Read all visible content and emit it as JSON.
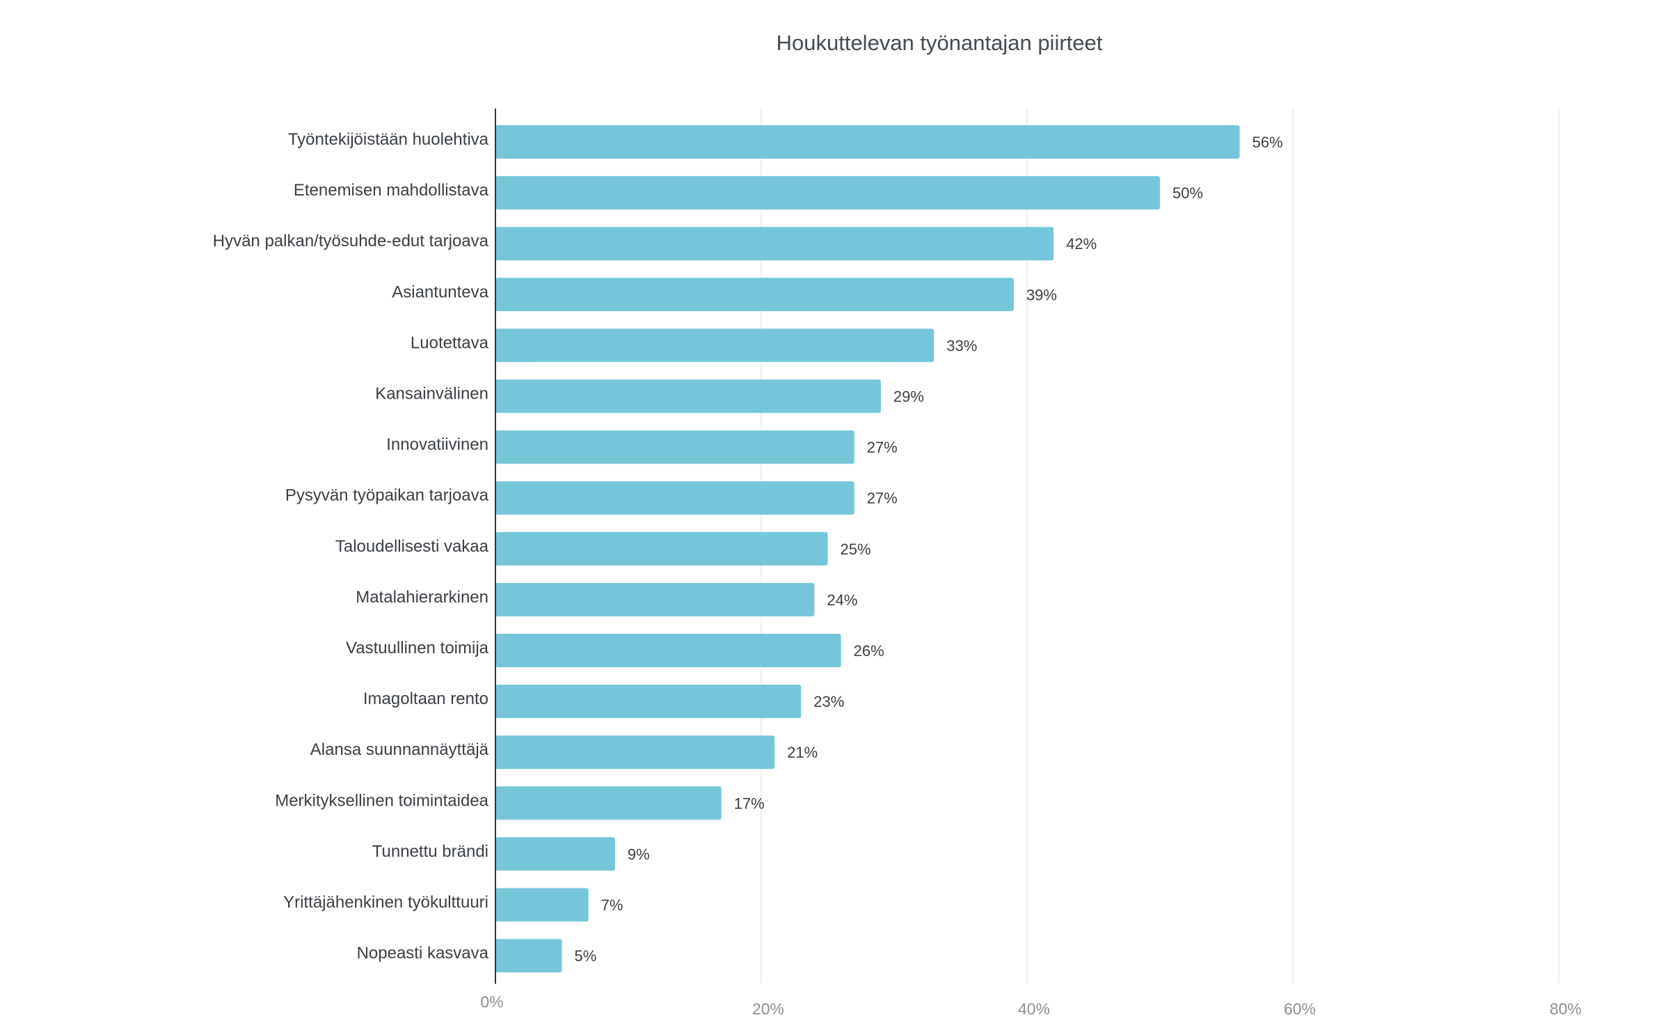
{
  "colors": {
    "bar": "#76c6da",
    "grid": "#eeeeee",
    "axis": "#333333"
  },
  "chart_data": {
    "type": "bar",
    "orientation": "horizontal",
    "title": "Houkuttelevan työnantajan piirteet",
    "xlabel": "",
    "ylabel": "",
    "xlim": [
      0,
      80
    ],
    "x_ticks": [
      0,
      20,
      40,
      60,
      80
    ],
    "x_tick_labels": [
      "0%",
      "20%",
      "40%",
      "60%",
      "80%"
    ],
    "grid": true,
    "legend": "none",
    "categories": [
      "Työntekijöistään huolehtiva",
      "Etenemisen mahdollistava",
      "Hyvän palkan/työsuhde-edut tarjoava",
      "Asiantunteva",
      "Luotettava",
      "Kansainvälinen",
      "Innovatiivinen",
      "Pysyvän työpaikan tarjoava",
      "Taloudellisesti vakaa",
      "Matalahierarkinen",
      "Vastuullinen toimija",
      "Imagoltaan rento",
      "Alansa suunnannäyttäjä",
      "Merkityksellinen toimintaidea",
      "Tunnettu brändi",
      "Yrittäjähenkinen työkulttuuri",
      "Nopeasti kasvava"
    ],
    "values": [
      56,
      50,
      42,
      39,
      33,
      29,
      27,
      27,
      25,
      24,
      26,
      23,
      21,
      17,
      9,
      7,
      5
    ],
    "value_labels": [
      "56%",
      "50%",
      "42%",
      "39%",
      "33%",
      "29%",
      "27%",
      "27%",
      "25%",
      "24%",
      "26%",
      "23%",
      "21%",
      "17%",
      "9%",
      "7%",
      "5%"
    ]
  }
}
